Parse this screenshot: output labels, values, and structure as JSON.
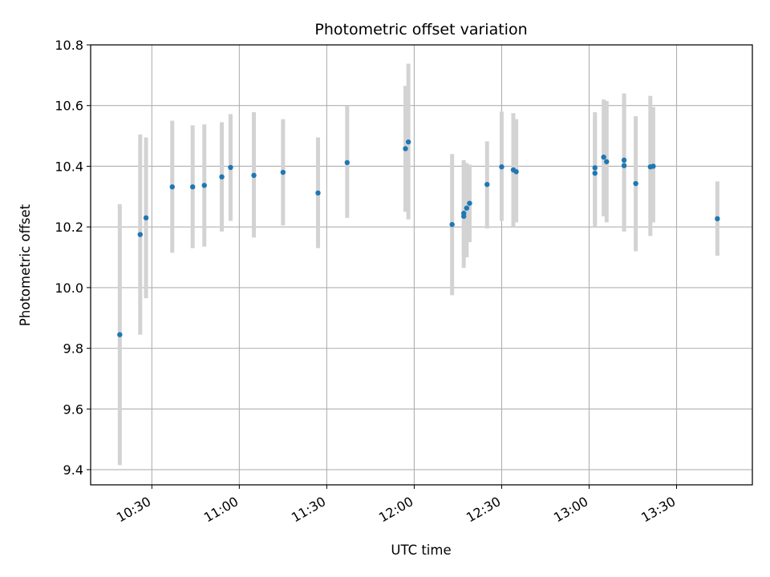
{
  "chart_data": {
    "type": "scatter",
    "title": "Photometric offset variation",
    "xlabel": "UTC time",
    "ylabel": "Photometric offset",
    "x_ticks": [
      "10:30",
      "11:00",
      "11:30",
      "12:00",
      "12:30",
      "13:00",
      "13:30"
    ],
    "y_ticks": [
      "9.4",
      "9.6",
      "9.8",
      "10.0",
      "10.2",
      "10.4",
      "10.6",
      "10.8"
    ],
    "xlim": [
      "10:09",
      "13:56"
    ],
    "ylim": [
      9.35,
      10.8
    ],
    "grid": true,
    "colors": {
      "points": "#1f77b4",
      "error_bars": "#d3d3d3",
      "grid": "#b0b0b0"
    },
    "series": [
      {
        "name": "",
        "points": [
          {
            "t": "10:19",
            "y": 9.845,
            "lo": 9.415,
            "hi": 10.275
          },
          {
            "t": "10:26",
            "y": 10.175,
            "lo": 9.845,
            "hi": 10.505
          },
          {
            "t": "10:28",
            "y": 10.23,
            "lo": 9.965,
            "hi": 10.495
          },
          {
            "t": "10:37",
            "y": 10.332,
            "lo": 10.115,
            "hi": 10.55
          },
          {
            "t": "10:44",
            "y": 10.332,
            "lo": 10.13,
            "hi": 10.535
          },
          {
            "t": "10:48",
            "y": 10.337,
            "lo": 10.135,
            "hi": 10.538
          },
          {
            "t": "10:54",
            "y": 10.365,
            "lo": 10.185,
            "hi": 10.545
          },
          {
            "t": "10:57",
            "y": 10.396,
            "lo": 10.22,
            "hi": 10.572
          },
          {
            "t": "11:05",
            "y": 10.37,
            "lo": 10.165,
            "hi": 10.578
          },
          {
            "t": "11:15",
            "y": 10.38,
            "lo": 10.205,
            "hi": 10.555
          },
          {
            "t": "11:27",
            "y": 10.312,
            "lo": 10.13,
            "hi": 10.495
          },
          {
            "t": "11:37",
            "y": 10.412,
            "lo": 10.23,
            "hi": 10.6
          },
          {
            "t": "11:57",
            "y": 10.458,
            "lo": 10.25,
            "hi": 10.665
          },
          {
            "t": "11:58",
            "y": 10.48,
            "lo": 10.225,
            "hi": 10.738
          },
          {
            "t": "12:13",
            "y": 10.208,
            "lo": 9.975,
            "hi": 10.44
          },
          {
            "t": "12:17",
            "y": 10.245,
            "lo": 10.065,
            "hi": 10.42
          },
          {
            "t": "12:17",
            "y": 10.235,
            "lo": 10.1,
            "hi": 10.42
          },
          {
            "t": "12:18",
            "y": 10.262,
            "lo": 10.1,
            "hi": 10.41
          },
          {
            "t": "12:19",
            "y": 10.278,
            "lo": 10.15,
            "hi": 10.405
          },
          {
            "t": "12:25",
            "y": 10.34,
            "lo": 10.195,
            "hi": 10.482
          },
          {
            "t": "12:30",
            "y": 10.398,
            "lo": 10.22,
            "hi": 10.58
          },
          {
            "t": "12:34",
            "y": 10.388,
            "lo": 10.2,
            "hi": 10.575
          },
          {
            "t": "12:35",
            "y": 10.382,
            "lo": 10.215,
            "hi": 10.555
          },
          {
            "t": "13:02",
            "y": 10.395,
            "lo": 10.21,
            "hi": 10.578
          },
          {
            "t": "13:02",
            "y": 10.377,
            "lo": 10.2,
            "hi": 10.555
          },
          {
            "t": "13:05",
            "y": 10.43,
            "lo": 10.235,
            "hi": 10.62
          },
          {
            "t": "13:06",
            "y": 10.415,
            "lo": 10.215,
            "hi": 10.615
          },
          {
            "t": "13:12",
            "y": 10.42,
            "lo": 10.2,
            "hi": 10.64
          },
          {
            "t": "13:12",
            "y": 10.402,
            "lo": 10.185,
            "hi": 10.62
          },
          {
            "t": "13:16",
            "y": 10.343,
            "lo": 10.12,
            "hi": 10.565
          },
          {
            "t": "13:21",
            "y": 10.398,
            "lo": 10.17,
            "hi": 10.632
          },
          {
            "t": "13:22",
            "y": 10.4,
            "lo": 10.215,
            "hi": 10.595
          },
          {
            "t": "13:44",
            "y": 10.227,
            "lo": 10.105,
            "hi": 10.35
          }
        ]
      }
    ]
  }
}
